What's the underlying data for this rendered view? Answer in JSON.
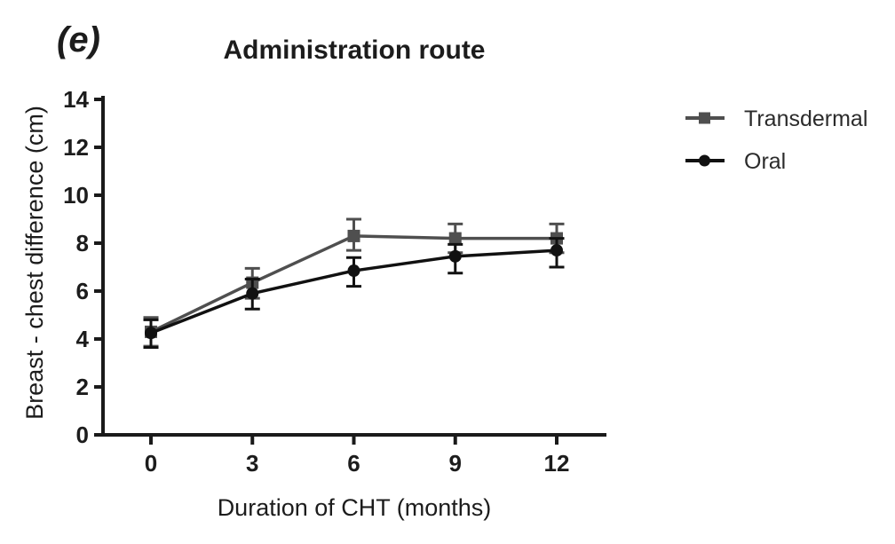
{
  "panel_label": "(e)",
  "colors": {
    "axis": "#1a1a1a",
    "transdermal": "#4f4f4f",
    "oral": "#111111",
    "background": "#ffffff"
  },
  "chart_data": {
    "type": "line",
    "title": "Administration route",
    "xlabel": "Duration of CHT (months)",
    "ylabel": "Breast - chest difference (cm)",
    "x": [
      0,
      3,
      6,
      9,
      12
    ],
    "xtick_labels": [
      "0",
      "3",
      "6",
      "9",
      "12"
    ],
    "yticks": [
      0,
      2,
      4,
      6,
      8,
      10,
      12,
      14
    ],
    "ytick_labels": [
      "0",
      "2",
      "4",
      "6",
      "8",
      "10",
      "12",
      "14"
    ],
    "xlim": [
      0,
      12
    ],
    "ylim": [
      0,
      14
    ],
    "grid": false,
    "error_bars": true,
    "legend_position": "right-outside",
    "series": [
      {
        "name": "Transdermal",
        "marker": "square",
        "color": "#4f4f4f",
        "values": [
          4.3,
          6.35,
          8.3,
          8.2,
          8.2
        ],
        "err_up": [
          0.6,
          0.6,
          0.7,
          0.6,
          0.6
        ],
        "err_down": [
          0.6,
          0.65,
          0.6,
          0.6,
          0.6
        ]
      },
      {
        "name": "Oral",
        "marker": "circle",
        "color": "#111111",
        "values": [
          4.25,
          5.9,
          6.85,
          7.45,
          7.7
        ],
        "err_up": [
          0.55,
          0.6,
          0.55,
          0.5,
          0.5
        ],
        "err_down": [
          0.6,
          0.65,
          0.65,
          0.7,
          0.7
        ]
      }
    ]
  }
}
